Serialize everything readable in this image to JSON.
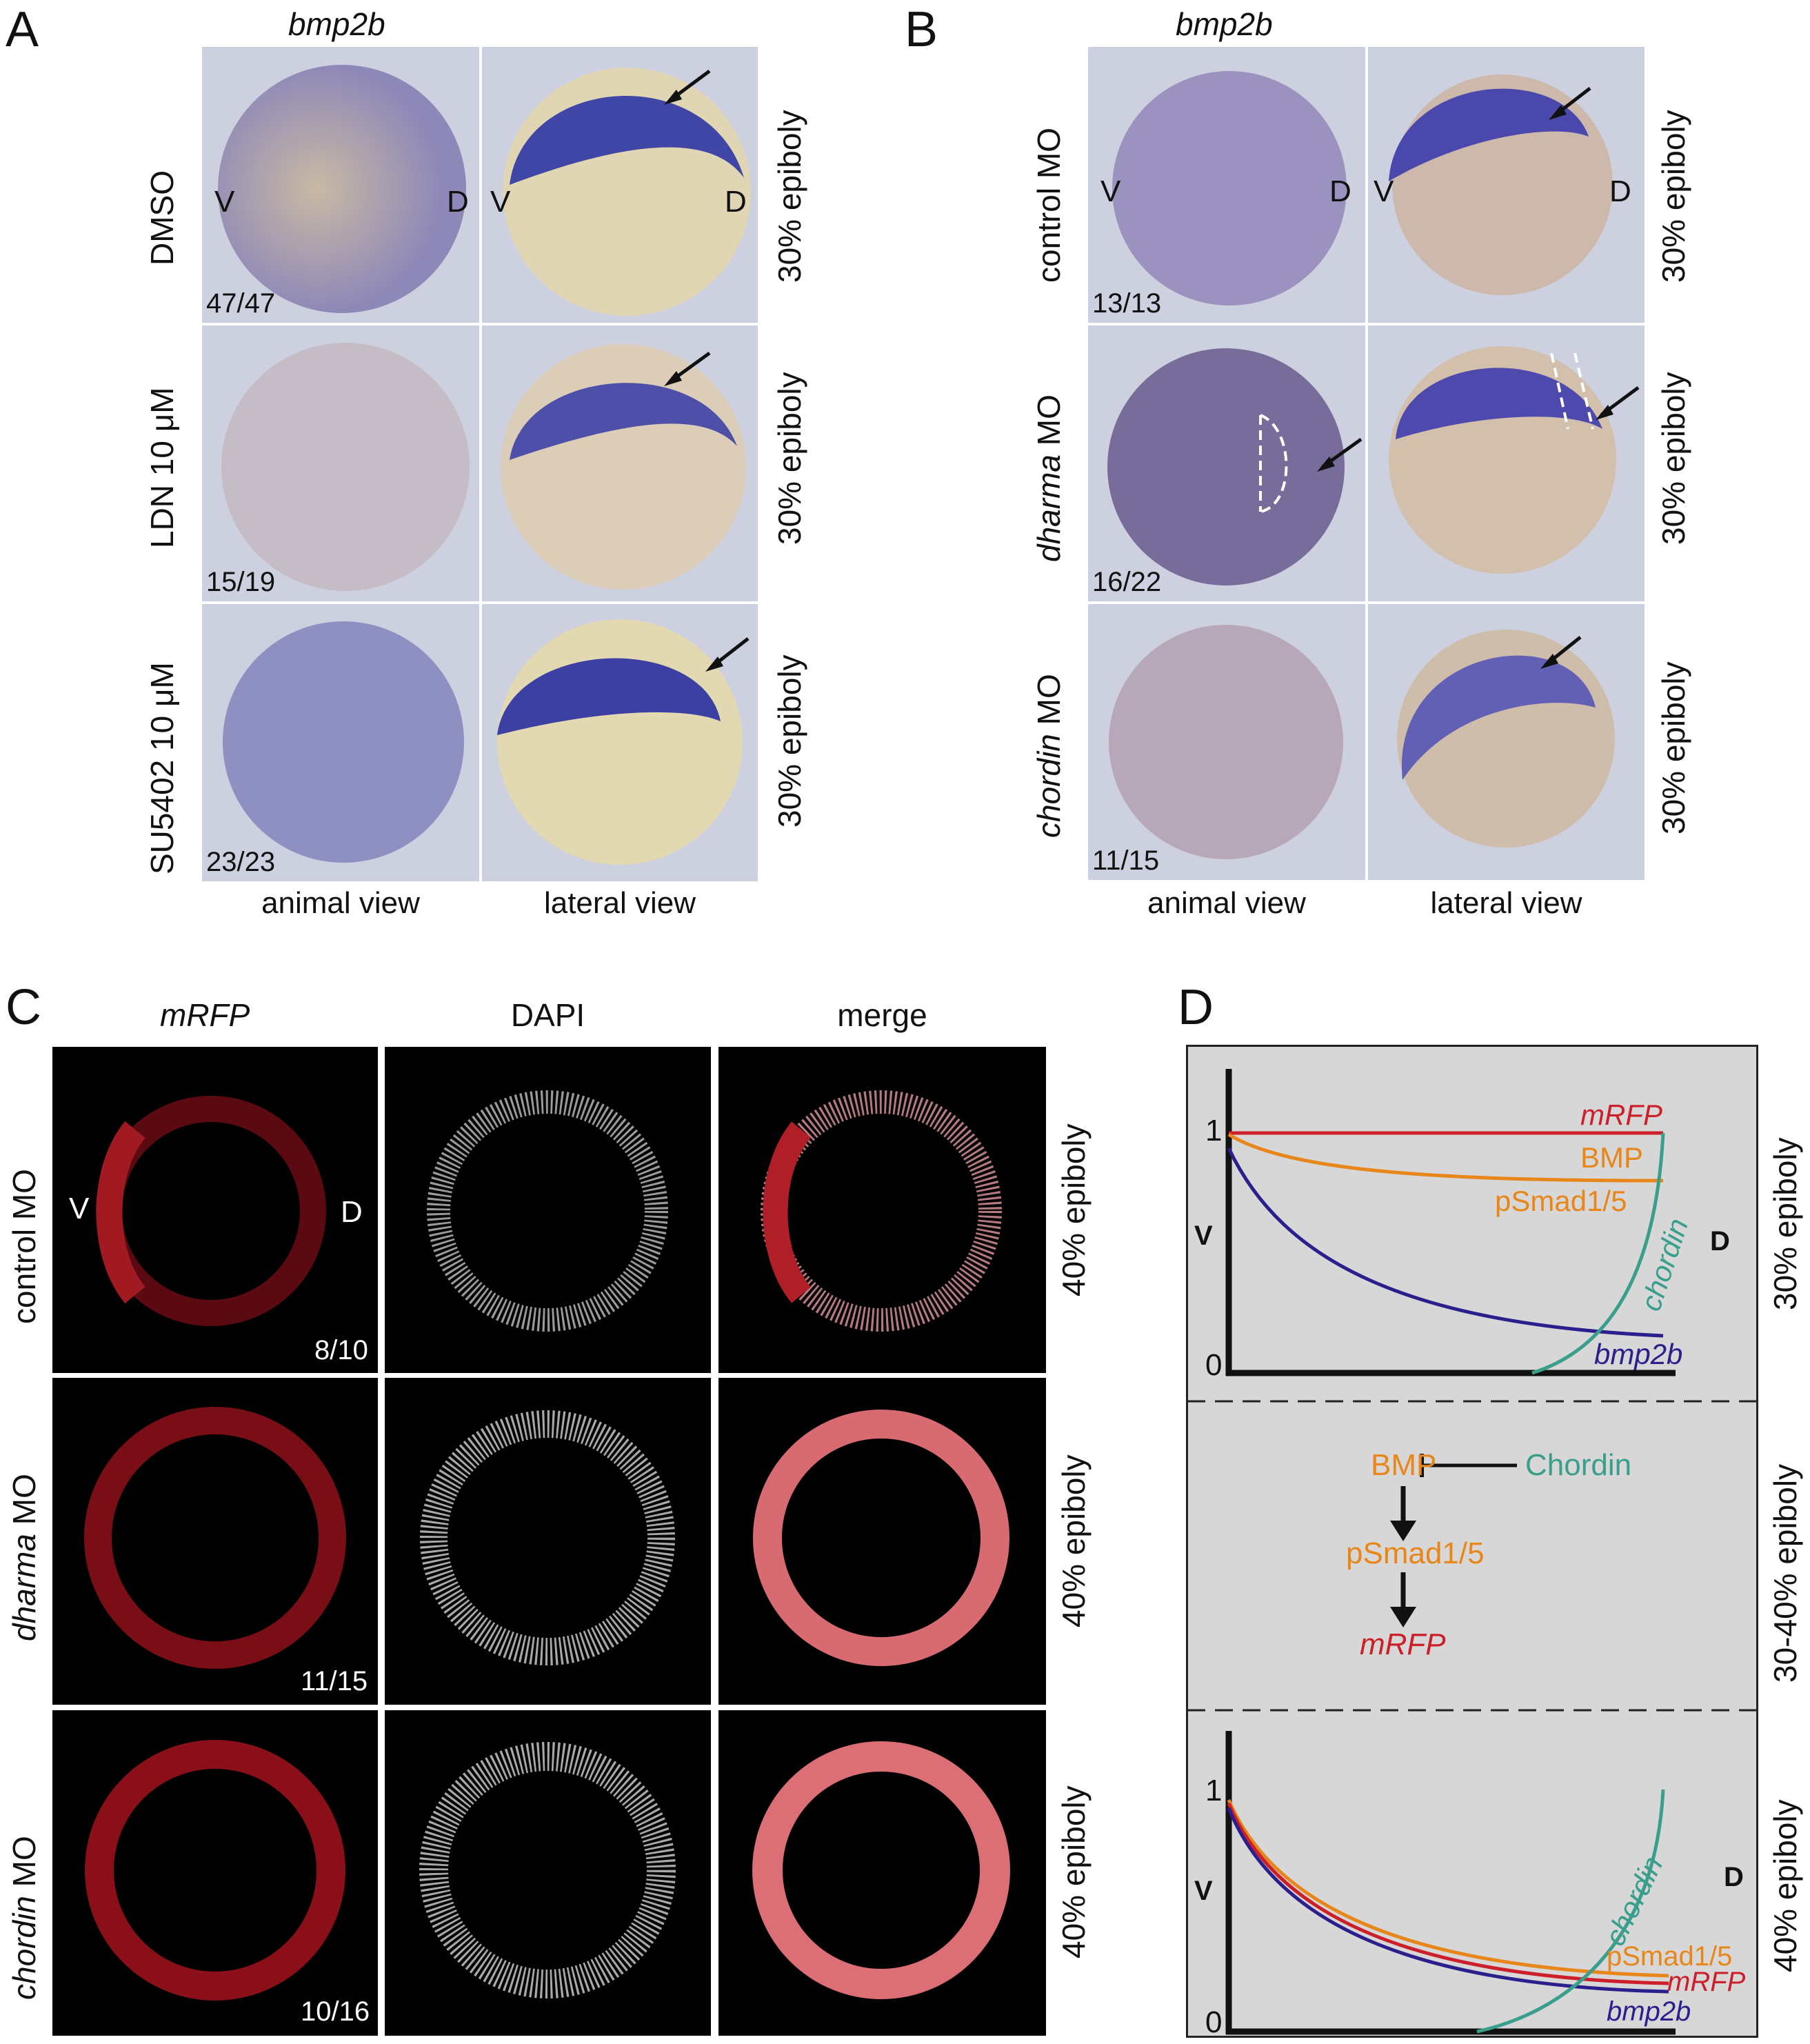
{
  "panelA": {
    "letter": "A",
    "gene": "bmp2b",
    "rows": [
      {
        "label": "DMSO",
        "count": "47/47",
        "stage": "30% epiboly",
        "v": "V",
        "d": "D"
      },
      {
        "label": "LDN 10 μM",
        "count": "15/19",
        "stage": "30% epiboly"
      },
      {
        "label": "SU5402 10 μM",
        "count": "23/23",
        "stage": "30% epiboly"
      }
    ],
    "col1": "animal view",
    "col2": "lateral view"
  },
  "panelB": {
    "letter": "B",
    "gene": "bmp2b",
    "rows": [
      {
        "label": "control MO",
        "count": "13/13",
        "stage": "30% epiboly",
        "v": "V",
        "d": "D"
      },
      {
        "label_it": "dharma",
        "label_rest": " MO",
        "count": "16/22",
        "stage": "30% epiboly"
      },
      {
        "label_it": "chordin",
        "label_rest": " MO",
        "count": "11/15",
        "stage": "30% epiboly"
      }
    ],
    "col1": "animal view",
    "col2": "lateral view"
  },
  "panelC": {
    "letter": "C",
    "col_headers": [
      "mRFP",
      "DAPI",
      "merge"
    ],
    "rows": [
      {
        "label": "control MO",
        "count": "8/10",
        "stage": "40% epiboly",
        "v": "V",
        "d": "D"
      },
      {
        "label_it": "dharma",
        "label_rest": " MO",
        "count": "11/15",
        "stage": "40% epiboly"
      },
      {
        "label_it": "chordin",
        "label_rest": " MO",
        "count": "10/16",
        "stage": "40% epiboly"
      }
    ]
  },
  "panelD": {
    "letter": "D",
    "top": {
      "stage": "30% epiboly",
      "y1": "1",
      "y0": "0",
      "v": "V",
      "d": "D",
      "labels": {
        "mrfp": "mRFP",
        "bmp": "BMP",
        "psmad": "pSmad1/5",
        "chordin": "chordin",
        "bmp2b": "bmp2b"
      }
    },
    "middle": {
      "stage": "30-40% epiboly",
      "bmp": "BMP",
      "chordin": "Chordin",
      "psmad": "pSmad1/5",
      "mrfp": "mRFP"
    },
    "bottom": {
      "stage": "40% epiboly",
      "y1": "1",
      "y0": "0",
      "v": "V",
      "d": "D",
      "labels": {
        "chordin": "chordin",
        "psmad": "pSmad1/5",
        "mrfp": "mRFP",
        "bmp2b": "bmp2b"
      }
    },
    "colors": {
      "mrfp": "#cc1f2a",
      "bmp": "#e8861a",
      "bmp2b": "#2a1f8c",
      "chordin": "#3a9e8c"
    }
  }
}
